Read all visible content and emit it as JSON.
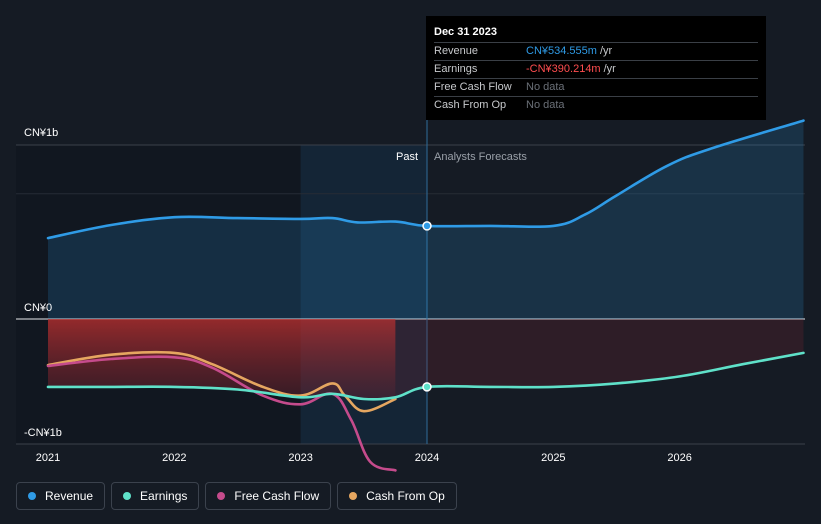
{
  "chart_data": {
    "type": "line",
    "x_ticks": [
      "2021",
      "2022",
      "2023",
      "2024",
      "2025",
      "2026"
    ],
    "y_ticks": [
      "CN¥1b",
      "CN¥0",
      "-CN¥1b"
    ],
    "ylim": [
      -1.1,
      1.0
    ],
    "xlim": [
      2020.75,
      2026.98
    ],
    "past_end": 2024.0,
    "region_labels": {
      "past": "Past",
      "forecast": "Analysts Forecasts"
    },
    "series": [
      {
        "name": "Revenue",
        "color": "#2f9be6",
        "fill": true,
        "points": [
          [
            2021.0,
            0.465
          ],
          [
            2021.5,
            0.54
          ],
          [
            2022.0,
            0.585
          ],
          [
            2022.5,
            0.58
          ],
          [
            2023.0,
            0.575
          ],
          [
            2023.25,
            0.58
          ],
          [
            2023.45,
            0.555
          ],
          [
            2023.75,
            0.56
          ],
          [
            2024.0,
            0.535
          ],
          [
            2024.5,
            0.535
          ],
          [
            2025.0,
            0.535
          ],
          [
            2025.25,
            0.6
          ],
          [
            2025.5,
            0.71
          ],
          [
            2025.9,
            0.88
          ],
          [
            2026.25,
            0.98
          ],
          [
            2026.98,
            1.14
          ]
        ]
      },
      {
        "name": "Earnings",
        "color": "#5fe1c9",
        "fill": true,
        "points": [
          [
            2021.0,
            -0.39
          ],
          [
            2021.5,
            -0.39
          ],
          [
            2022.0,
            -0.39
          ],
          [
            2022.5,
            -0.405
          ],
          [
            2023.0,
            -0.45
          ],
          [
            2023.25,
            -0.43
          ],
          [
            2023.5,
            -0.46
          ],
          [
            2023.75,
            -0.45
          ],
          [
            2024.0,
            -0.39
          ],
          [
            2024.5,
            -0.39
          ],
          [
            2025.0,
            -0.39
          ],
          [
            2025.5,
            -0.37
          ],
          [
            2026.0,
            -0.33
          ],
          [
            2026.5,
            -0.26
          ],
          [
            2026.98,
            -0.195
          ]
        ]
      },
      {
        "name": "Free Cash Flow",
        "color": "#c54b8c",
        "fill": false,
        "points": [
          [
            2021.0,
            -0.27
          ],
          [
            2021.5,
            -0.23
          ],
          [
            2022.0,
            -0.22
          ],
          [
            2022.3,
            -0.28
          ],
          [
            2022.7,
            -0.44
          ],
          [
            2023.0,
            -0.49
          ],
          [
            2023.25,
            -0.43
          ],
          [
            2023.4,
            -0.58
          ],
          [
            2023.55,
            -0.82
          ],
          [
            2023.75,
            -0.87
          ]
        ]
      },
      {
        "name": "Cash From Op",
        "color": "#e5a660",
        "fill": false,
        "points": [
          [
            2021.0,
            -0.265
          ],
          [
            2021.5,
            -0.205
          ],
          [
            2022.0,
            -0.195
          ],
          [
            2022.3,
            -0.26
          ],
          [
            2022.7,
            -0.39
          ],
          [
            2023.0,
            -0.44
          ],
          [
            2023.25,
            -0.37
          ],
          [
            2023.35,
            -0.44
          ],
          [
            2023.5,
            -0.53
          ],
          [
            2023.75,
            -0.46
          ]
        ]
      }
    ]
  },
  "tooltip": {
    "date": "Dec 31 2023",
    "rows": [
      {
        "label": "Revenue",
        "value": "CN¥534.555m",
        "unit": "/yr",
        "color": "#2f9be6"
      },
      {
        "label": "Earnings",
        "value": "-CN¥390.214m",
        "unit": "/yr",
        "color": "#ff4d4f"
      },
      {
        "label": "Free Cash Flow",
        "value": "No data",
        "unit": "",
        "color": "#6b7078"
      },
      {
        "label": "Cash From Op",
        "value": "No data",
        "unit": "",
        "color": "#6b7078"
      }
    ]
  },
  "legend": [
    {
      "label": "Revenue",
      "color": "#2f9be6"
    },
    {
      "label": "Earnings",
      "color": "#5fe1c9"
    },
    {
      "label": "Free Cash Flow",
      "color": "#c54b8c"
    },
    {
      "label": "Cash From Op",
      "color": "#e5a660"
    }
  ]
}
